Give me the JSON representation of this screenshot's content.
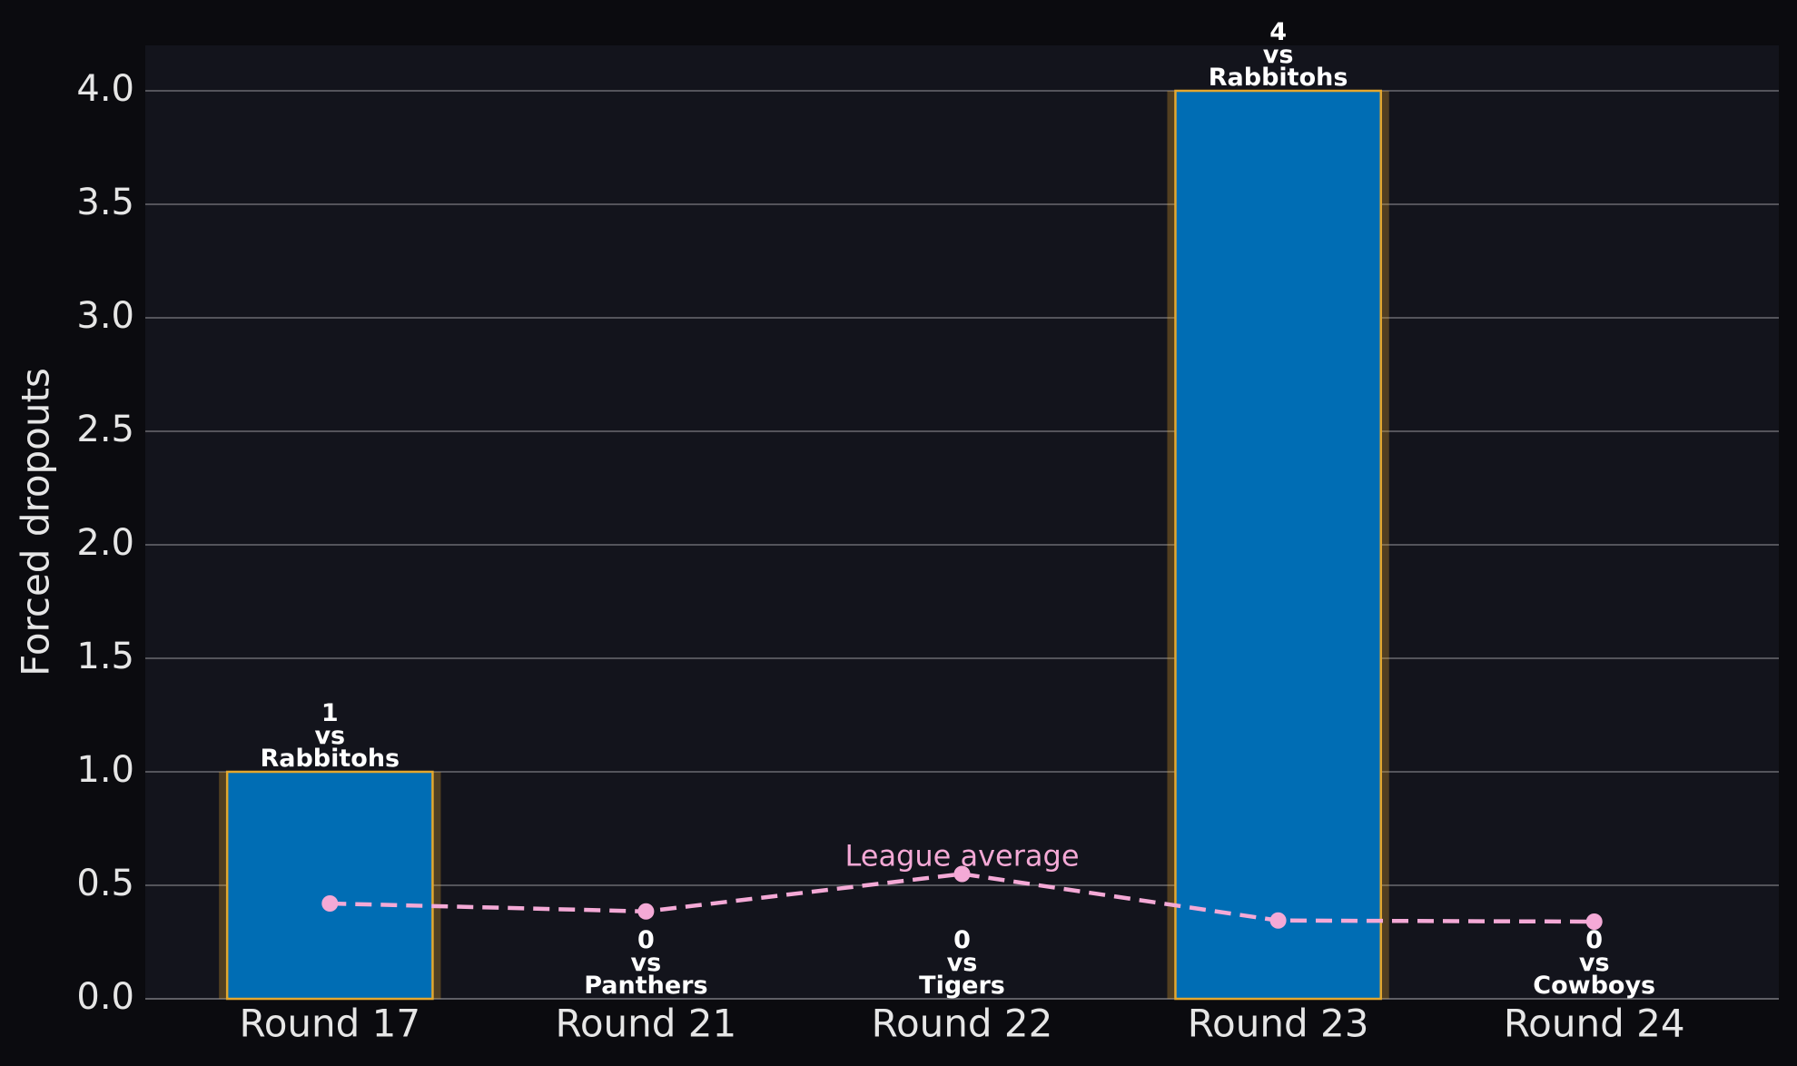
{
  "chart_data": {
    "type": "bar",
    "y_label": "Forced dropouts",
    "categories": [
      "Round 17",
      "Round 21",
      "Round 22",
      "Round 23",
      "Round 24"
    ],
    "values": [
      1,
      0,
      0,
      4,
      0
    ],
    "opponent_labels": [
      "vs\nRabbitohs",
      "vs\nPanthers",
      "vs\nTigers",
      "vs\nRabbitohs",
      "vs\nCowboys"
    ],
    "color": "#006db4",
    "edge_color": "#e3a72f",
    "line": {
      "name": "League average",
      "color": "#f4a9d6",
      "values": [
        0.42,
        0.385,
        0.55,
        0.345,
        0.34
      ]
    },
    "ylim": [
      0,
      4.2
    ],
    "yticks": [
      {
        "value": 0,
        "label": "0.0"
      },
      0.5,
      {
        "value": 1,
        "label": "1.0"
      },
      1.5,
      {
        "value": 2,
        "label": "2.0"
      },
      2.5,
      {
        "value": 3,
        "label": "3.0"
      },
      3.5,
      {
        "value": 4,
        "label": "4.0"
      }
    ],
    "grid": true
  }
}
